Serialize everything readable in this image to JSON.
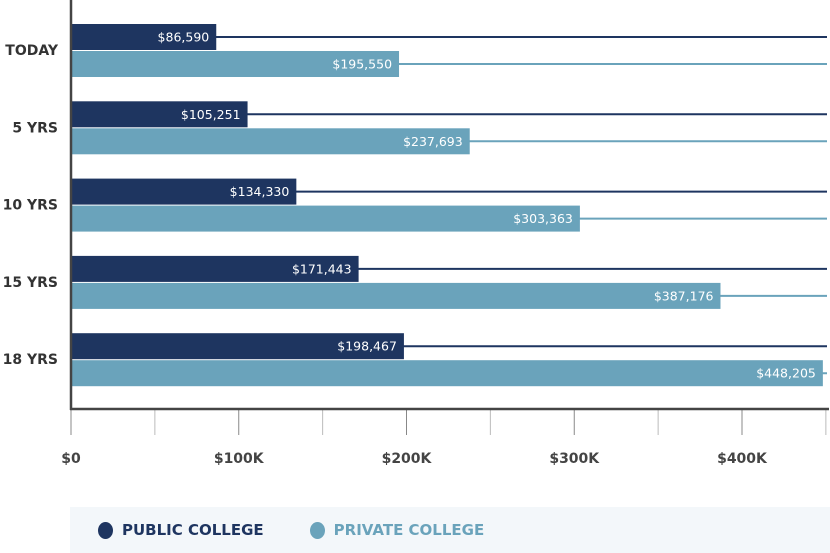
{
  "chart_data": {
    "type": "bar",
    "orientation": "horizontal",
    "categories": [
      "TODAY",
      "5 YRS",
      "10 YRS",
      "15 YRS",
      "18 YRS"
    ],
    "series": [
      {
        "name": "PUBLIC COLLEGE",
        "color": "#1e3560",
        "values": [
          86590,
          105251,
          134330,
          171443,
          198467
        ],
        "labels": [
          "$86,590",
          "$105,251",
          "$134,330",
          "$171,443",
          "$198,467"
        ]
      },
      {
        "name": "PRIVATE COLLEGE",
        "color": "#6aa3bb",
        "values": [
          195550,
          237693,
          303363,
          387176,
          448205
        ],
        "labels": [
          "$195,550",
          "$237,693",
          "$303,363",
          "$387,176",
          "$448,205"
        ]
      }
    ],
    "xlim": [
      0,
      450000
    ],
    "xticks": [
      0,
      100000,
      200000,
      300000,
      400000
    ],
    "xtick_labels": [
      "$0",
      "$100K",
      "$200K",
      "$300K",
      "$400K"
    ],
    "legend_placement": "bottom"
  }
}
